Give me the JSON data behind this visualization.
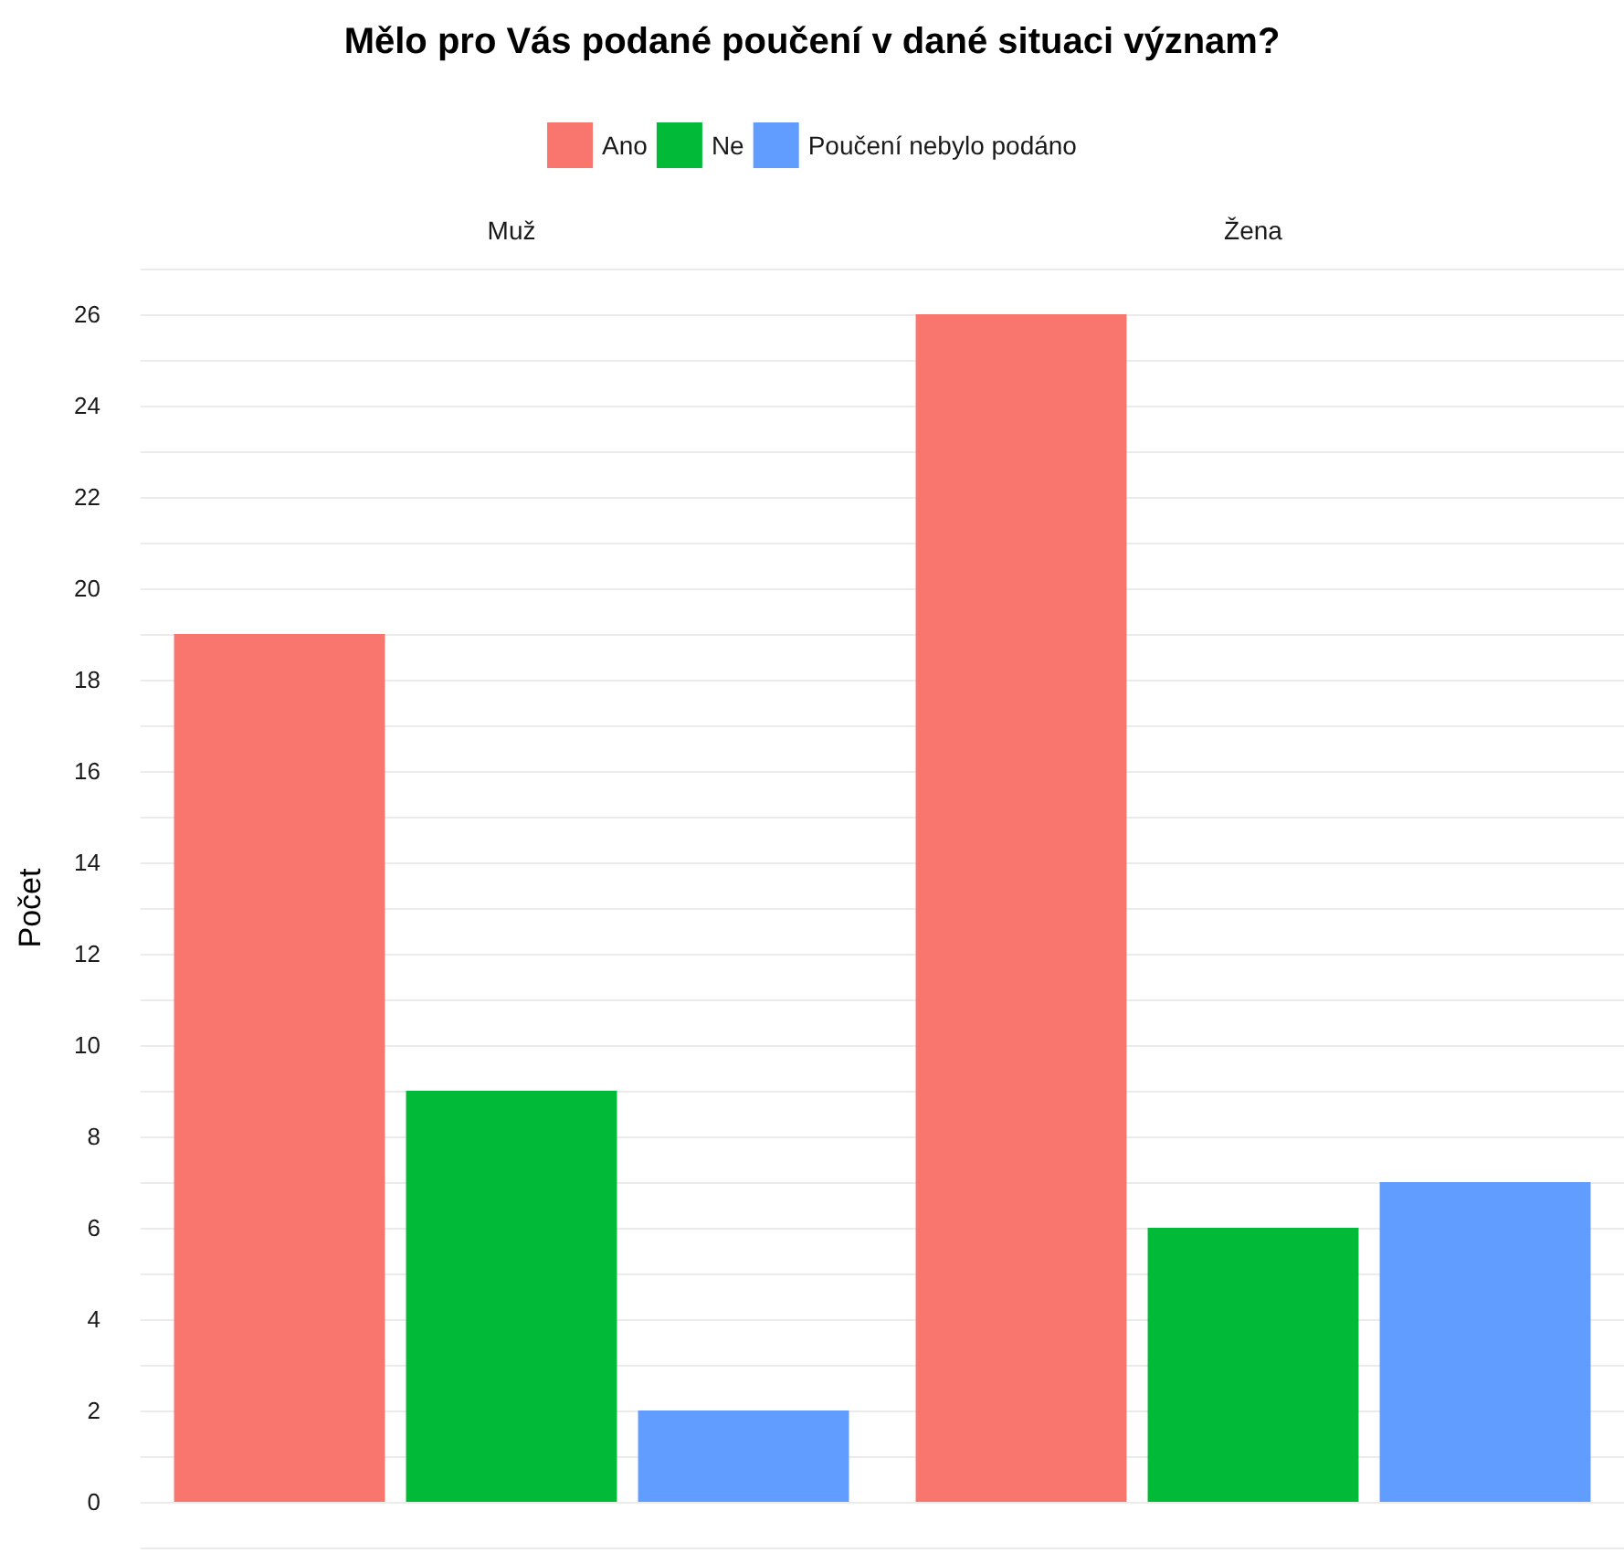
{
  "chart_data": {
    "type": "bar",
    "title": "Mělo pro Vás podané poučení v dané situaci význam?",
    "ylabel": "Počet",
    "categories": [
      "Muž",
      "Žena"
    ],
    "series": [
      {
        "name": "Ano",
        "color": "#f8766d",
        "values": [
          19,
          26
        ]
      },
      {
        "name": "Ne",
        "color": "#00ba38",
        "values": [
          9,
          6
        ]
      },
      {
        "name": "Poučení nebylo podáno",
        "color": "#619cff",
        "values": [
          2,
          7
        ]
      }
    ],
    "ylim": [
      -1,
      27
    ],
    "yticks": [
      {
        "value": -1,
        "label": null
      },
      0,
      {
        "value": 1,
        "label": null
      },
      2,
      {
        "value": 3,
        "label": null
      },
      4,
      {
        "value": 5,
        "label": null
      },
      6,
      {
        "value": 7,
        "label": null
      },
      8,
      {
        "value": 9,
        "label": null
      },
      10,
      {
        "value": 11,
        "label": null
      },
      12,
      {
        "value": 13,
        "label": null
      },
      14,
      {
        "value": 15,
        "label": null
      },
      16,
      {
        "value": 17,
        "label": null
      },
      18,
      {
        "value": 19,
        "label": null
      },
      20,
      {
        "value": 21,
        "label": null
      },
      22,
      {
        "value": 23,
        "label": null
      },
      24,
      {
        "value": 25,
        "label": null
      },
      26,
      {
        "value": 27,
        "label": null
      }
    ],
    "grid": "y",
    "legend": "top"
  }
}
